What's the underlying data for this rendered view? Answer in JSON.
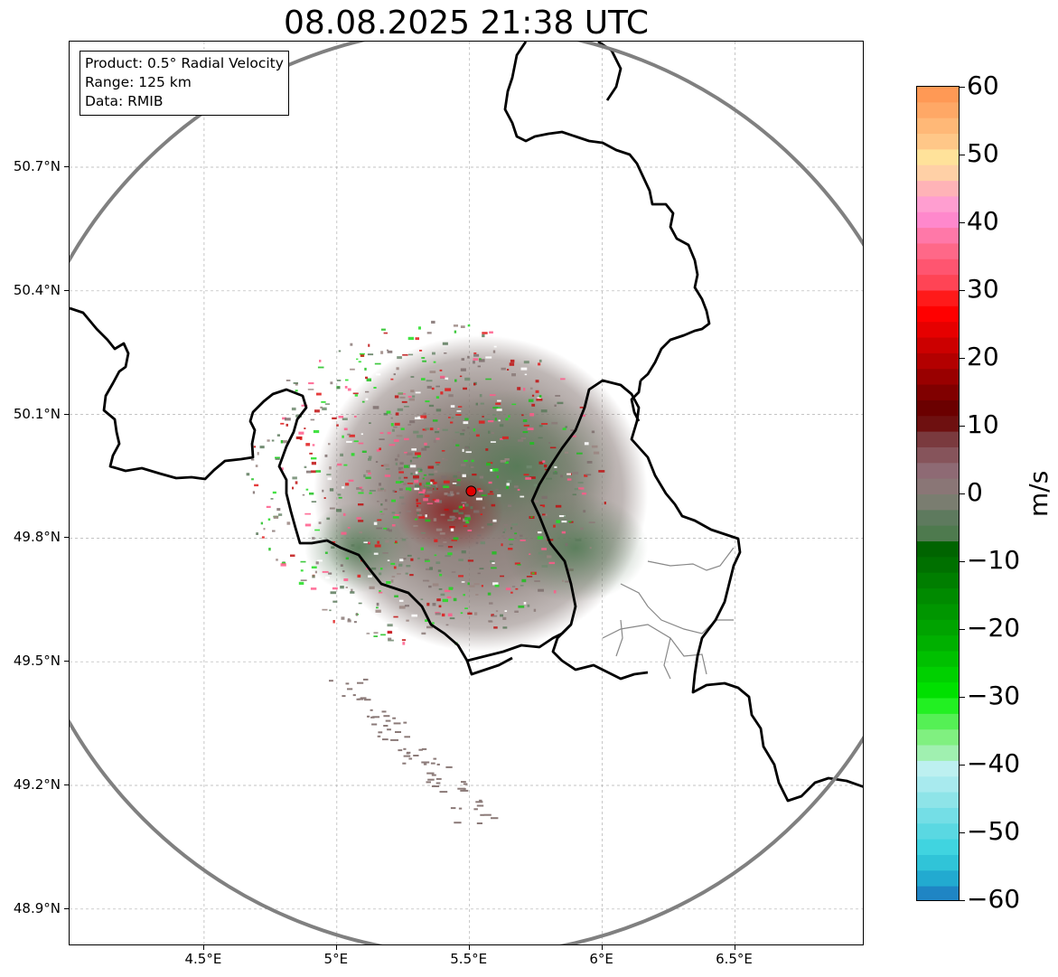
{
  "title": "08.08.2025 21:38 UTC",
  "info": {
    "product": "Product: 0.5° Radial Velocity",
    "range": "Range: 125 km",
    "data": "Data: RMIB"
  },
  "map": {
    "lat_ticks": [
      "50.7°N",
      "50.4°N",
      "50.1°N",
      "49.8°N",
      "49.5°N",
      "49.2°N",
      "48.9°N"
    ],
    "lon_ticks": [
      "4.5°E",
      "5°E",
      "5.5°E",
      "6°E",
      "6.5°E"
    ],
    "radar_site": {
      "lat": 49.914,
      "lon": 5.506
    },
    "range_ring_color": "#808080",
    "border_color": "#000000",
    "marker_color": "#e00000",
    "grid": true
  },
  "colorbar": {
    "label": "m/s",
    "ticks": [
      "60",
      "50",
      "40",
      "30",
      "20",
      "10",
      "0",
      "−10",
      "−20",
      "−30",
      "−40",
      "−50",
      "−60"
    ],
    "min": -60,
    "max": 60,
    "colors_top_to_bottom": [
      "#ff9955",
      "#ffa866",
      "#ffb877",
      "#ffc788",
      "#ffe29a",
      "#ffd0a6",
      "#ffb3b7",
      "#ff9ed0",
      "#ff88cc",
      "#ff78a8",
      "#ff6888",
      "#ff5570",
      "#ff4455",
      "#ff1a1a",
      "#ff0000",
      "#e60000",
      "#cc0000",
      "#b30000",
      "#990000",
      "#800000",
      "#6b0000",
      "#6e1010",
      "#7a3a3e",
      "#86545b",
      "#8e6a74",
      "#8a7676",
      "#7a7d70",
      "#5e7a5e",
      "#4e7a4e",
      "#006400",
      "#007000",
      "#007e00",
      "#008a00",
      "#009600",
      "#00a300",
      "#00b000",
      "#00c000",
      "#00d000",
      "#00e000",
      "#22f022",
      "#55f055",
      "#80f080",
      "#a0f0b0",
      "#bdf0f0",
      "#a8eaee",
      "#8ee4e8",
      "#74dee6",
      "#5ad8e2",
      "#40d4e0",
      "#30c4d8",
      "#22aad0",
      "#1f85c4"
    ]
  }
}
